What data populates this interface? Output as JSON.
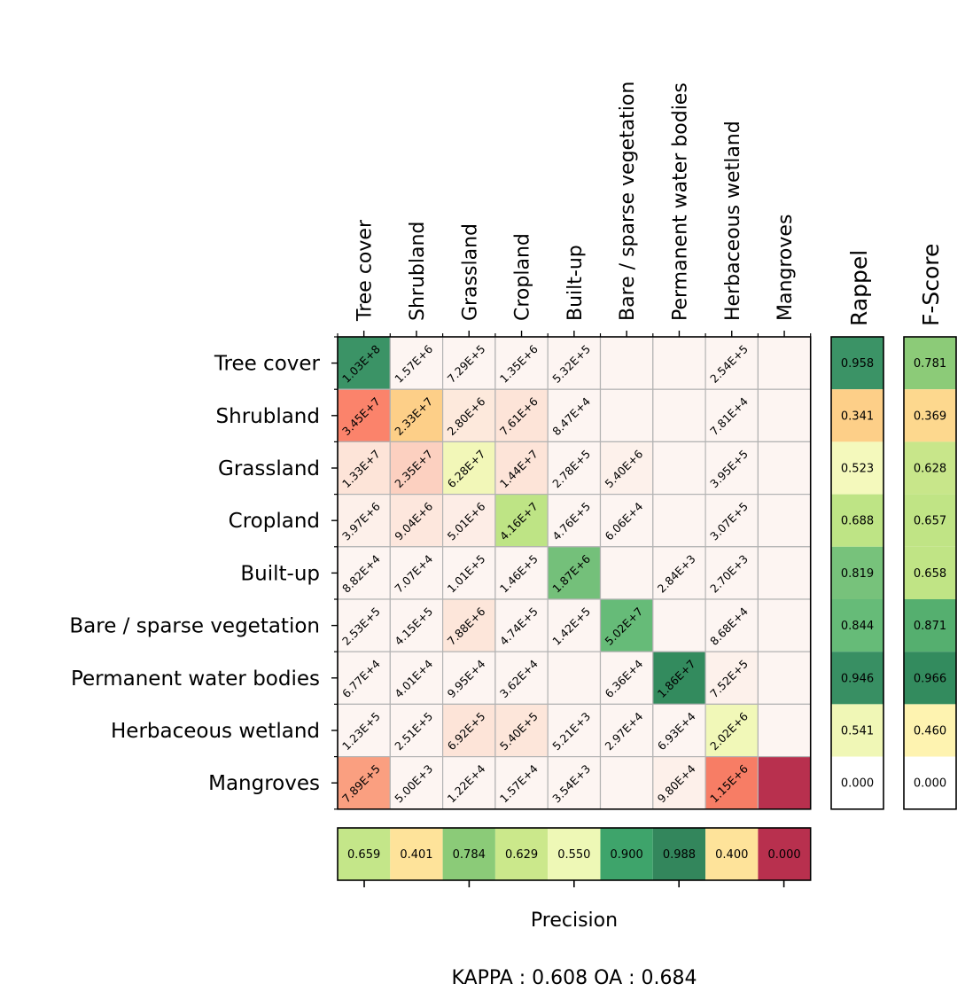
{
  "chart_data": {
    "type": "heatmap",
    "title": "",
    "classes": [
      "Tree cover",
      "Shrubland",
      "Grassland",
      "Cropland",
      "Built-up",
      "Bare / sparse vegetation",
      "Permanent water bodies",
      "Herbaceous wetland",
      "Mangroves"
    ],
    "matrix_labels": [
      [
        "1.03E+8",
        "1.57E+6",
        "7.29E+5",
        "1.35E+6",
        "5.32E+5",
        "",
        "",
        "2.54E+5",
        ""
      ],
      [
        "3.45E+7",
        "2.33E+7",
        "2.80E+6",
        "7.61E+6",
        "8.47E+4",
        "",
        "",
        "7.81E+4",
        ""
      ],
      [
        "1.33E+7",
        "2.35E+7",
        "6.28E+7",
        "1.44E+7",
        "2.78E+5",
        "5.40E+6",
        "",
        "3.95E+5",
        ""
      ],
      [
        "3.97E+6",
        "9.04E+6",
        "5.01E+6",
        "4.16E+7",
        "4.76E+5",
        "6.06E+4",
        "",
        "3.07E+5",
        ""
      ],
      [
        "8.82E+4",
        "7.07E+4",
        "1.01E+5",
        "1.46E+5",
        "1.87E+6",
        "",
        "2.84E+3",
        "2.70E+3",
        ""
      ],
      [
        "2.53E+5",
        "4.15E+5",
        "7.88E+6",
        "4.74E+5",
        "1.42E+5",
        "5.02E+7",
        "",
        "8.68E+4",
        ""
      ],
      [
        "6.77E+4",
        "4.01E+4",
        "9.95E+4",
        "3.62E+4",
        "",
        "6.36E+4",
        "1.86E+7",
        "7.52E+5",
        ""
      ],
      [
        "1.23E+5",
        "2.51E+5",
        "6.92E+5",
        "5.40E+5",
        "5.21E+3",
        "2.97E+4",
        "6.93E+4",
        "2.02E+6",
        ""
      ],
      [
        "7.89E+5",
        "5.00E+3",
        "1.22E+4",
        "1.57E+4",
        "3.54E+3",
        "",
        "9.80E+4",
        "1.15E+6",
        ""
      ]
    ],
    "matrix_colors": [
      [
        "#3b9366",
        "#fdf5f2",
        "#fdf5f2",
        "#fdf5f2",
        "#fdf5f2",
        "#fdf5f2",
        "#fdf5f2",
        "#fdf5f2",
        "#fdf5f2"
      ],
      [
        "#fb836b",
        "#fdcf88",
        "#fde9dc",
        "#fde4d8",
        "#fdf5f2",
        "#fdf5f2",
        "#fdf5f2",
        "#fdf5f2",
        "#fdf5f2"
      ],
      [
        "#fde4d8",
        "#fcd0c0",
        "#f2f7b8",
        "#fde4d8",
        "#fdf5f2",
        "#fdf1eb",
        "#fdf5f2",
        "#fdf5f2",
        "#fdf5f2"
      ],
      [
        "#fdf0ea",
        "#fde7dd",
        "#fdede6",
        "#bee485",
        "#fdf5f2",
        "#fdf5f2",
        "#fdf5f2",
        "#fdf5f2",
        "#fdf5f2"
      ],
      [
        "#fdf5f2",
        "#fdf5f2",
        "#fdf5f2",
        "#fdf5f2",
        "#74c07a",
        "#fdf5f2",
        "#fdf5f2",
        "#fdf5f2",
        "#fdf5f2"
      ],
      [
        "#fdf5f2",
        "#fdf5f2",
        "#fde6da",
        "#fdf5f2",
        "#fdf5f2",
        "#66bb78",
        "#fdf5f2",
        "#fdf5f2",
        "#fdf5f2"
      ],
      [
        "#fdf5f2",
        "#fdf5f2",
        "#fdf5f2",
        "#fdf5f2",
        "#fdf5f2",
        "#fdf5f2",
        "#338b5e",
        "#fdf1eb",
        "#fdf5f2"
      ],
      [
        "#fdf5f2",
        "#fdf5f2",
        "#fde4d8",
        "#fde6da",
        "#fdf5f2",
        "#fdf5f2",
        "#fdf5f2",
        "#f1f8b8",
        "#fdf5f2"
      ],
      [
        "#fa9f80",
        "#fdf5f2",
        "#fdf5f2",
        "#fdf5f2",
        "#fdf5f2",
        "#fdf5f2",
        "#fdf0ea",
        "#f77d65",
        "#b8304e"
      ]
    ],
    "rappel": {
      "label": "Rappel",
      "values": [
        "0.958",
        "0.341",
        "0.523",
        "0.688",
        "0.819",
        "0.844",
        "0.946",
        "0.541",
        "0.000"
      ],
      "colors": [
        "#3b9366",
        "#fdcf88",
        "#f4f9bc",
        "#bee485",
        "#77c27b",
        "#66bb78",
        "#388f63",
        "#f0f7b6",
        "#ffffff"
      ]
    },
    "fscore": {
      "label": "F-Score",
      "values": [
        "0.781",
        "0.369",
        "0.628",
        "0.657",
        "0.658",
        "0.871",
        "0.966",
        "0.460",
        "0.000"
      ],
      "colors": [
        "#8ccb78",
        "#fdd88e",
        "#c8e68a",
        "#c0e485",
        "#c0e485",
        "#55af6f",
        "#338b5e",
        "#fef3b0",
        "#ffffff"
      ]
    },
    "precision": {
      "label": "Precision",
      "values": [
        "0.659",
        "0.401",
        "0.784",
        "0.629",
        "0.550",
        "0.900",
        "0.988",
        "0.400",
        "0.000"
      ],
      "colors": [
        "#c4e689",
        "#fee39a",
        "#8bcb78",
        "#cbe88b",
        "#eef8b6",
        "#3ea46b",
        "#33865c",
        "#fee39a",
        "#b8304e"
      ]
    },
    "summary": "KAPPA : 0.608 OA : 0.684"
  }
}
